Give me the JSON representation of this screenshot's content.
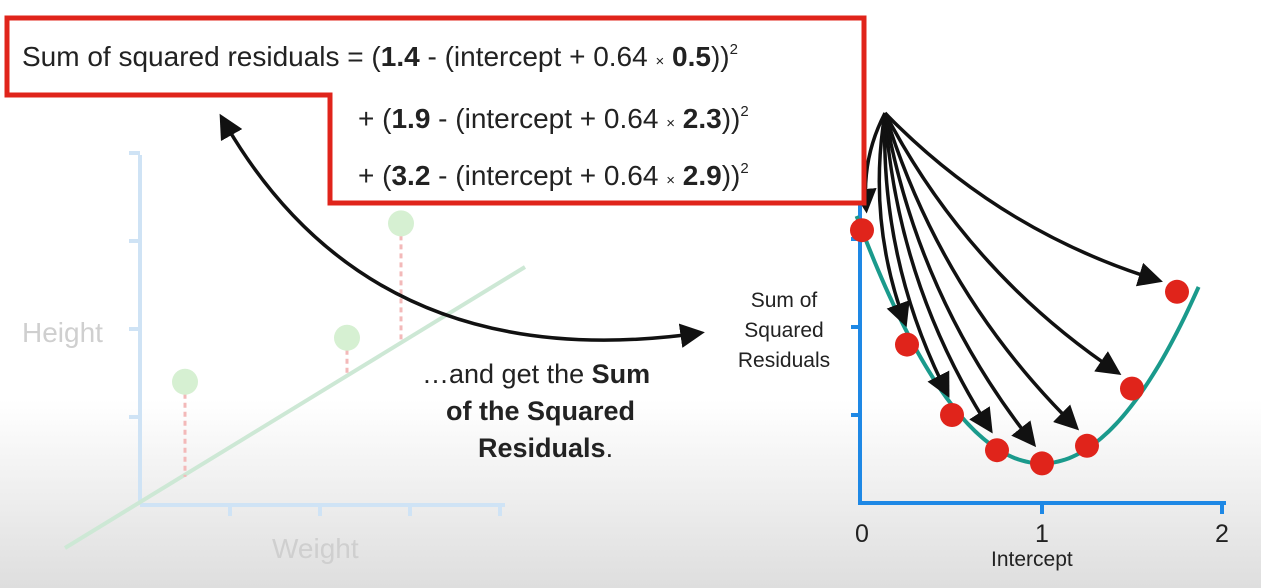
{
  "equation": {
    "line1": {
      "prefix": "Sum of squared residuals = (",
      "observed": "1.4",
      "middle": " - (intercept + 0.64 ",
      "times": "×",
      "x": "0.5",
      "close": "))",
      "exp": "2"
    },
    "line2": {
      "prefix": "+ (",
      "observed": "1.9",
      "middle": " - (intercept + 0.64 ",
      "times": "×",
      "x": "2.3",
      "close": "))",
      "exp": "2"
    },
    "line3": {
      "prefix": "+ (",
      "observed": "3.2",
      "middle": " - (intercept + 0.64 ",
      "times": "×",
      "x": "2.9",
      "close": "))",
      "exp": "2"
    }
  },
  "caption": {
    "part1": "…and get the ",
    "bold1": "Sum",
    "bold2": "of the Squared",
    "bold3": "Residuals",
    "end": "."
  },
  "colors": {
    "box_border": "#e0241b",
    "axis_blue": "#1e88e5",
    "curve": "#1a9a8c",
    "point_red": "#e0241b",
    "faded_axis": "#cfe3f5",
    "faded_line": "#cde8d5",
    "faded_point": "#d6f0d2",
    "faded_residual": "#f3b9b9"
  },
  "chart_data": [
    {
      "type": "scatter",
      "xlabel": "Weight",
      "ylabel": "Height",
      "points": [
        {
          "x": 0.5,
          "y": 1.4
        },
        {
          "x": 2.3,
          "y": 1.9
        },
        {
          "x": 2.9,
          "y": 3.2
        }
      ],
      "fitted_line": {
        "slope": 0.64,
        "intercept": 0
      },
      "residuals_shown": true,
      "xlim": [
        0,
        4
      ],
      "ylim": [
        0,
        4
      ],
      "faded": true
    },
    {
      "type": "scatter",
      "xlabel": "Intercept",
      "ylabel": "Sum of Squared Residuals",
      "ylabel_lines": [
        "Sum of",
        "Squared",
        "Residuals"
      ],
      "xticks": [
        "0",
        "1",
        "2"
      ],
      "xlim": [
        0,
        2
      ],
      "ylim": [
        0,
        3.7
      ],
      "points": [
        {
          "x": 0.0,
          "y": 3.1
        },
        {
          "x": 0.25,
          "y": 1.8
        },
        {
          "x": 0.5,
          "y": 1.0
        },
        {
          "x": 0.75,
          "y": 0.6
        },
        {
          "x": 1.0,
          "y": 0.45
        },
        {
          "x": 1.25,
          "y": 0.65
        },
        {
          "x": 1.5,
          "y": 1.3
        },
        {
          "x": 1.75,
          "y": 2.4
        }
      ],
      "curve": {
        "type": "parabola",
        "vertex_x": 1.0,
        "vertex_y": 0.45,
        "a": 2.65
      }
    }
  ]
}
